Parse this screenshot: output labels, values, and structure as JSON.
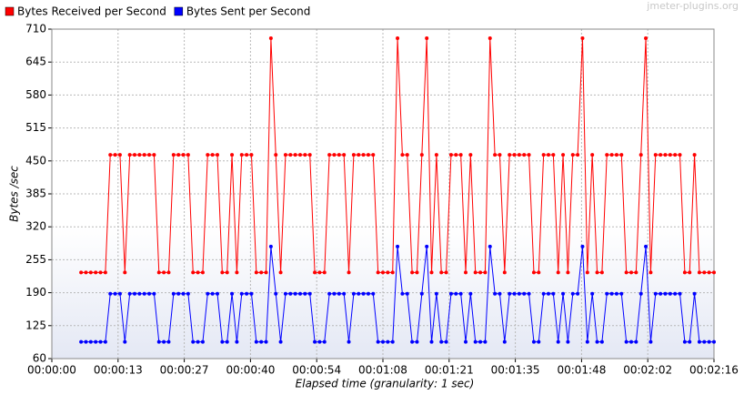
{
  "chart_data": {
    "type": "line",
    "watermark": "jmeter-plugins.org",
    "xlabel": "Elapsed time (granularity: 1 sec)",
    "ylabel": "Bytes /sec",
    "x": [
      6,
      7,
      8,
      9,
      10,
      11,
      12,
      13,
      14,
      15,
      16,
      17,
      18,
      19,
      20,
      21,
      22,
      23,
      24,
      25,
      26,
      27,
      28,
      29,
      30,
      31,
      32,
      33,
      34,
      35,
      36,
      37,
      38,
      39,
      40,
      41,
      42,
      43,
      44,
      45,
      46,
      47,
      48,
      49,
      50,
      51,
      52,
      53,
      54,
      55,
      56,
      57,
      58,
      59,
      60,
      61,
      62,
      63,
      64,
      65,
      66,
      67,
      68,
      69,
      70,
      71,
      72,
      73,
      74,
      75,
      76,
      77,
      78,
      79,
      80,
      81,
      82,
      83,
      84,
      85,
      86,
      87,
      88,
      89,
      90,
      91,
      92,
      93,
      94,
      95,
      96,
      97,
      98,
      99,
      100,
      101,
      102,
      103,
      104,
      105,
      106,
      107,
      108,
      109,
      110,
      111,
      112,
      113,
      114,
      115,
      116,
      117,
      118,
      119,
      120,
      121,
      122,
      123,
      124,
      125,
      126,
      127,
      128,
      129,
      130,
      131,
      132,
      133,
      134,
      135,
      136
    ],
    "series": [
      {
        "name": "Bytes Received per Second",
        "color": "#ff0000",
        "values": [
          230,
          230,
          230,
          230,
          230,
          230,
          462,
          462,
          462,
          230,
          462,
          462,
          462,
          462,
          462,
          462,
          230,
          230,
          230,
          462,
          462,
          462,
          462,
          230,
          230,
          230,
          462,
          462,
          462,
          230,
          230,
          462,
          230,
          462,
          462,
          462,
          230,
          230,
          230,
          692,
          462,
          230,
          462,
          462,
          462,
          462,
          462,
          462,
          230,
          230,
          230,
          462,
          462,
          462,
          462,
          230,
          462,
          462,
          462,
          462,
          462,
          230,
          230,
          230,
          230,
          692,
          462,
          462,
          230,
          230,
          462,
          692,
          230,
          462,
          230,
          230,
          462,
          462,
          462,
          230,
          462,
          230,
          230,
          230,
          692,
          462,
          462,
          230,
          462,
          462,
          462,
          462,
          462,
          230,
          230,
          462,
          462,
          462,
          230,
          462,
          230,
          462,
          462,
          692,
          230,
          462,
          230,
          230,
          462,
          462,
          462,
          462,
          230,
          230,
          230,
          462,
          692,
          230,
          462,
          462,
          462,
          462,
          462,
          462,
          230,
          230,
          462,
          230,
          230,
          230,
          230
        ]
      },
      {
        "name": "Bytes Sent per Second",
        "color": "#0000ff",
        "values": [
          93,
          93,
          93,
          93,
          93,
          93,
          188,
          188,
          188,
          93,
          188,
          188,
          188,
          188,
          188,
          188,
          93,
          93,
          93,
          188,
          188,
          188,
          188,
          93,
          93,
          93,
          188,
          188,
          188,
          93,
          93,
          188,
          93,
          188,
          188,
          188,
          93,
          93,
          93,
          281,
          188,
          93,
          188,
          188,
          188,
          188,
          188,
          188,
          93,
          93,
          93,
          188,
          188,
          188,
          188,
          93,
          188,
          188,
          188,
          188,
          188,
          93,
          93,
          93,
          93,
          281,
          188,
          188,
          93,
          93,
          188,
          281,
          93,
          188,
          93,
          93,
          188,
          188,
          188,
          93,
          188,
          93,
          93,
          93,
          281,
          188,
          188,
          93,
          188,
          188,
          188,
          188,
          188,
          93,
          93,
          188,
          188,
          188,
          93,
          188,
          93,
          188,
          188,
          281,
          93,
          188,
          93,
          93,
          188,
          188,
          188,
          188,
          93,
          93,
          93,
          188,
          281,
          93,
          188,
          188,
          188,
          188,
          188,
          188,
          93,
          93,
          188,
          93,
          93,
          93,
          93
        ]
      }
    ],
    "xlim": [
      0,
      136
    ],
    "xticks": [
      {
        "value": 0,
        "label": "00:00:00"
      },
      {
        "value": 13.6,
        "label": "00:00:13"
      },
      {
        "value": 27.2,
        "label": "00:00:27"
      },
      {
        "value": 40.8,
        "label": "00:00:40"
      },
      {
        "value": 54.4,
        "label": "00:00:54"
      },
      {
        "value": 68,
        "label": "00:01:08"
      },
      {
        "value": 81.6,
        "label": "00:01:21"
      },
      {
        "value": 95.2,
        "label": "00:01:35"
      },
      {
        "value": 108.8,
        "label": "00:01:48"
      },
      {
        "value": 122.4,
        "label": "00:02:02"
      },
      {
        "value": 136,
        "label": "00:02:16"
      }
    ],
    "ylim": [
      60,
      710
    ],
    "yticks": [
      60,
      125,
      190,
      255,
      320,
      385,
      450,
      515,
      580,
      645,
      710
    ],
    "grid": true
  }
}
